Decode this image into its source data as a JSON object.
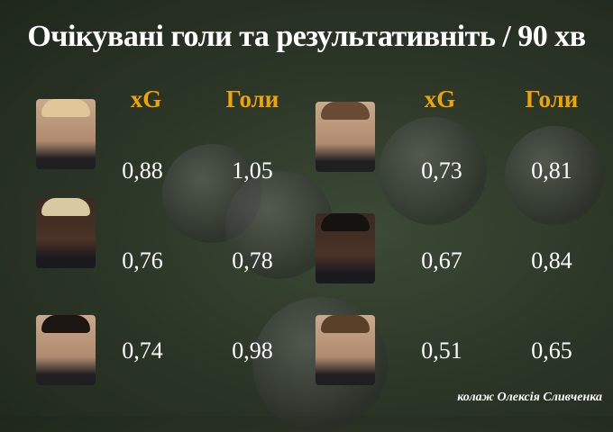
{
  "title": "Очікувані голи та результативніть / 90 хв",
  "headers": {
    "xg": "xG",
    "goals": "Голи"
  },
  "colors": {
    "header": "#f0a400",
    "text": "#ffffff"
  },
  "left_column": [
    {
      "xg": "0,88",
      "goals": "1,05"
    },
    {
      "xg": "0,76",
      "goals": "0,78"
    },
    {
      "xg": "0,74",
      "goals": "0,98"
    }
  ],
  "right_column": [
    {
      "xg": "0,73",
      "goals": "0,81"
    },
    {
      "xg": "0,67",
      "goals": "0,84"
    },
    {
      "xg": "0,51",
      "goals": "0,65"
    }
  ],
  "credit": "колаж Олексія Сливченка"
}
